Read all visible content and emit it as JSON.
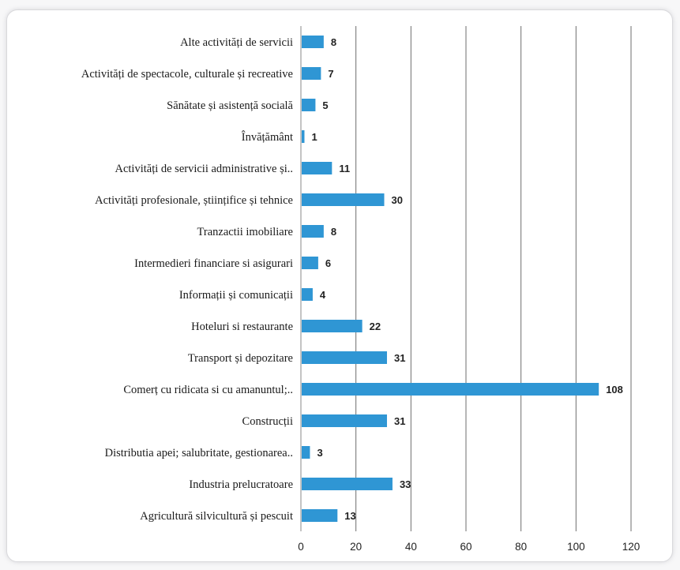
{
  "chart_data": {
    "type": "bar",
    "orientation": "horizontal",
    "categories": [
      "Alte activități de servicii",
      "Activități de spectacole, culturale și recreative",
      "Sănătate și asistență socială",
      "Învățământ",
      "Activități de servicii administrative și..",
      "Activități profesionale, științifice și tehnice",
      "Tranzactii imobiliare",
      "Intermedieri financiare si asigurari",
      "Informații și comunicații",
      "Hoteluri si restaurante",
      "Transport și depozitare",
      "Comerț cu ridicata si cu amanuntul;..",
      "Construcții",
      "Distributia apei; salubritate, gestionarea..",
      "Industria prelucratoare",
      "Agricultură silvicultură și pescuit"
    ],
    "values": [
      8,
      7,
      5,
      1,
      11,
      30,
      8,
      6,
      4,
      22,
      31,
      108,
      31,
      3,
      33,
      13
    ],
    "xlim": [
      0,
      120
    ],
    "xticks": [
      0,
      20,
      40,
      60,
      80,
      100,
      120
    ],
    "xlabel": "",
    "ylabel": "",
    "grid": "vertical",
    "bar_color": "#2f96d4",
    "grid_color": "#6e6e6e"
  }
}
